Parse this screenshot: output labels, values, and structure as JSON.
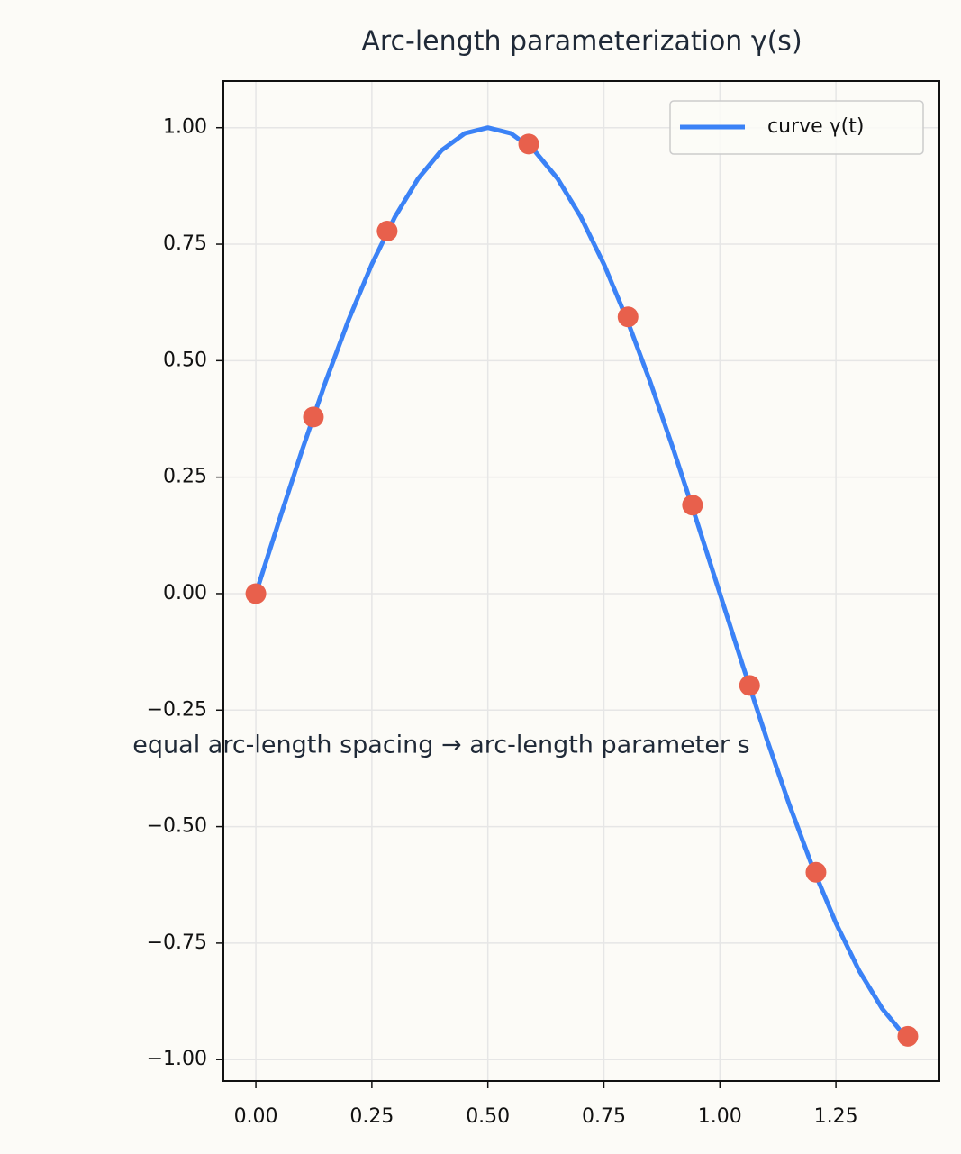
{
  "chart_data": {
    "type": "line",
    "title": "Arc-length parameterization γ(s)",
    "annotation": "equal arc-length spacing → arc-length parameter s",
    "x": [
      0,
      0.05,
      0.1,
      0.15,
      0.2,
      0.25,
      0.3,
      0.35,
      0.4,
      0.45,
      0.5,
      0.55,
      0.6,
      0.65,
      0.7,
      0.75,
      0.8,
      0.85,
      0.9,
      0.95,
      1.0,
      1.05,
      1.1,
      1.15,
      1.2,
      1.25,
      1.3,
      1.35,
      1.4
    ],
    "series": [
      {
        "name": "curve γ(t)",
        "color": "#3b82f6",
        "values": [
          0,
          0.1564,
          0.309,
          0.454,
          0.5878,
          0.7071,
          0.809,
          0.891,
          0.9511,
          0.9877,
          1,
          0.9877,
          0.9511,
          0.891,
          0.809,
          0.7071,
          0.5878,
          0.454,
          0.309,
          0.1564,
          0,
          -0.1564,
          -0.309,
          -0.454,
          -0.5878,
          -0.7071,
          -0.809,
          -0.891,
          -0.9511
        ]
      }
    ],
    "points": {
      "color": "#e8604c",
      "x": [
        0,
        0.124,
        0.283,
        0.588,
        0.802,
        0.941,
        1.064,
        1.207,
        1.405
      ],
      "y": [
        0,
        0.379,
        0.778,
        0.965,
        0.594,
        0.19,
        -0.197,
        -0.598,
        -0.95
      ]
    },
    "xlim": [
      -0.07,
      1.473
    ],
    "ylim": [
      -1.046,
      1.1
    ],
    "xticks": [
      {
        "value": 0,
        "label": "0.00"
      },
      {
        "value": 0.25,
        "label": "0.25"
      },
      {
        "value": 0.5,
        "label": "0.50"
      },
      {
        "value": 0.75,
        "label": "0.75"
      },
      {
        "value": 1,
        "label": "1.00"
      },
      {
        "value": 1.25,
        "label": "1.25"
      }
    ],
    "yticks": [
      {
        "value": -1,
        "label": "−1.00"
      },
      {
        "value": -0.75,
        "label": "−0.75"
      },
      {
        "value": -0.5,
        "label": "−0.50"
      },
      {
        "value": -0.25,
        "label": "−0.25"
      },
      {
        "value": 0,
        "label": "0.00"
      },
      {
        "value": 0.25,
        "label": "0.25"
      },
      {
        "value": 0.5,
        "label": "0.50"
      },
      {
        "value": 0.75,
        "label": "0.75"
      },
      {
        "value": 1,
        "label": "1.00"
      }
    ],
    "grid": true,
    "legend": "upper right"
  }
}
